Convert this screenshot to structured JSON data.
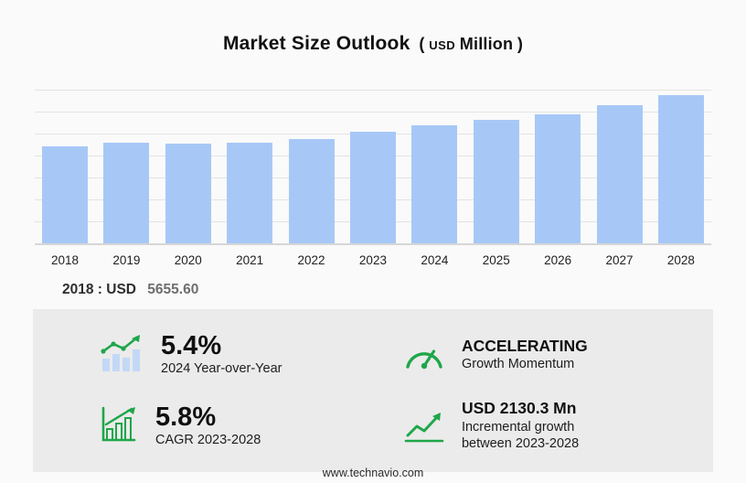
{
  "title": {
    "main": "Market Size Outlook",
    "paren_open": "(",
    "currency": "USD",
    "unit": "Million",
    "paren_close": ")"
  },
  "chart_data": {
    "type": "bar",
    "title": "Market Size Outlook (USD Million)",
    "categories": [
      "2018",
      "2019",
      "2020",
      "2021",
      "2022",
      "2023",
      "2024",
      "2025",
      "2026",
      "2027",
      "2028"
    ],
    "values": [
      5655.6,
      5860,
      5810,
      5900,
      6100,
      6538,
      6891,
      7210,
      7560,
      8080,
      8668.3
    ],
    "xlabel": "",
    "ylabel": "USD Million",
    "ylim": [
      0,
      9200
    ],
    "grid": true,
    "legend": "none",
    "bar_color": "#a7c8f7"
  },
  "annotation": {
    "label": "2018 : USD",
    "value": "5655.60"
  },
  "stats": [
    {
      "icon": "yoy-bar-trend-icon",
      "value": "5.4%",
      "caption": "2024 Year-over-Year"
    },
    {
      "icon": "speedometer-icon",
      "value": "ACCELERATING",
      "caption": "Growth Momentum"
    },
    {
      "icon": "cagr-chart-icon",
      "value": "5.8%",
      "caption": "CAGR 2023-2028"
    },
    {
      "icon": "incremental-growth-icon",
      "value": "USD 2130.3 Mn",
      "caption": "Incremental growth between 2023-2028"
    }
  ],
  "footer": {
    "url": "www.technavio.com"
  },
  "colors": {
    "bar": "#a7c8f7",
    "accent_green": "#1fa64a",
    "panel": "#ebebeb",
    "gridline": "#e3e3e3"
  }
}
